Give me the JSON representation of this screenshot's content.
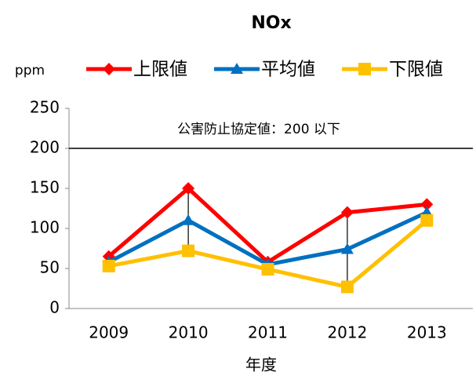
{
  "chart_data": {
    "type": "line",
    "title": "NOx",
    "y_label": "ppm",
    "x_label": "年度",
    "categories": [
      "2009",
      "2010",
      "2011",
      "2012",
      "2013"
    ],
    "series": [
      {
        "name": "上限値",
        "color": "#ff0000",
        "marker": "diamond",
        "values": [
          65,
          150,
          58,
          120,
          130
        ]
      },
      {
        "name": "平均値",
        "color": "#0070c0",
        "marker": "triangle",
        "values": [
          58,
          110,
          55,
          74,
          120
        ]
      },
      {
        "name": "下限値",
        "color": "#ffc000",
        "marker": "square",
        "values": [
          53,
          72,
          49,
          27,
          110
        ]
      }
    ],
    "high_low_lines": true,
    "reference": {
      "value": 200,
      "label": "公害防止協定値：200 以下"
    },
    "ylim": [
      0,
      250
    ],
    "yticks": [
      0,
      50,
      100,
      150,
      200,
      250
    ],
    "grid": false
  }
}
